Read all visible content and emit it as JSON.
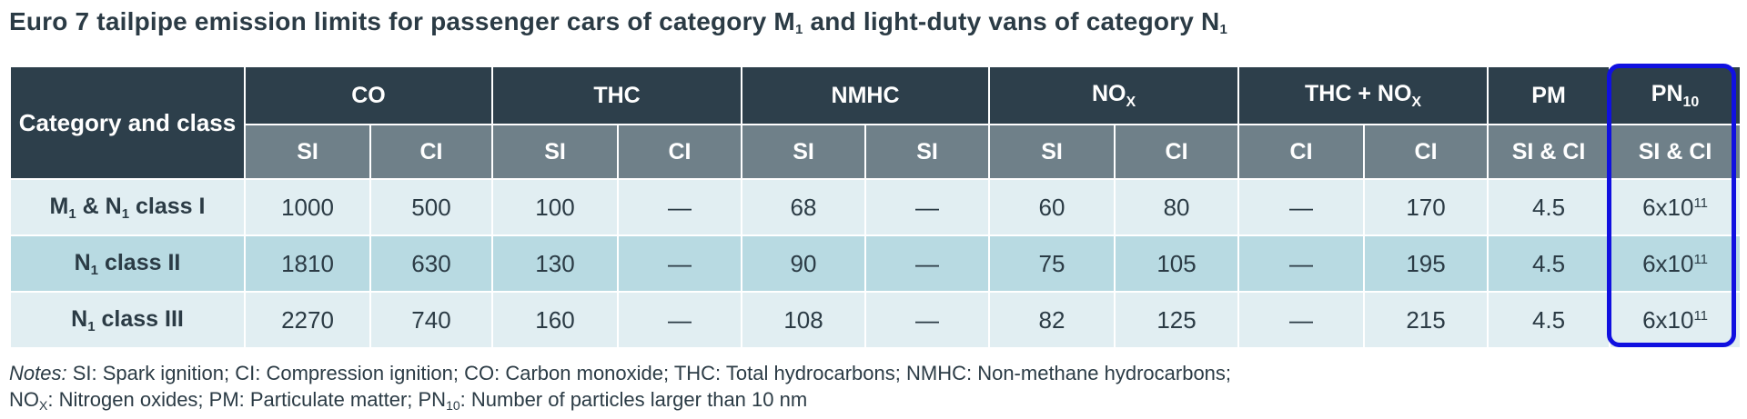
{
  "title": {
    "text_a": "Euro 7 tailpipe emission limits for passenger cars of category M",
    "sub_a": "1",
    "text_b": " and light-duty vans of category N",
    "sub_b": "1"
  },
  "table": {
    "category_header": "Category and class",
    "groups": {
      "co": "CO",
      "thc": "THC",
      "nmhc": "NMHC",
      "nox_base": "NO",
      "nox_sub": "X",
      "thcnox_base": "THC + NO",
      "thcnox_sub": "X",
      "pm": "PM",
      "pn_base": "PN",
      "pn_sub": "10"
    },
    "subheaders": [
      "SI",
      "CI",
      "SI",
      "CI",
      "SI",
      "SI",
      "SI",
      "CI",
      "CI",
      "CI",
      "SI & CI",
      "SI & CI"
    ],
    "rows": [
      {
        "label": {
          "a": "M",
          "a_sub": "1",
          "b": " & N",
          "b_sub": "1",
          "c": " class I"
        },
        "values": [
          "1000",
          "500",
          "100",
          "—",
          "68",
          "—",
          "60",
          "80",
          "—",
          "170",
          "4.5"
        ],
        "pn": {
          "base": "6x10",
          "exp": "11"
        }
      },
      {
        "label": {
          "a": "N",
          "a_sub": "1",
          "b": " class II"
        },
        "values": [
          "1810",
          "630",
          "130",
          "—",
          "90",
          "—",
          "75",
          "105",
          "—",
          "195",
          "4.5"
        ],
        "pn": {
          "base": "6x10",
          "exp": "11"
        }
      },
      {
        "label": {
          "a": "N",
          "a_sub": "1",
          "b": " class III"
        },
        "values": [
          "2270",
          "740",
          "160",
          "—",
          "108",
          "—",
          "82",
          "125",
          "—",
          "215",
          "4.5"
        ],
        "pn": {
          "base": "6x10",
          "exp": "11"
        }
      }
    ]
  },
  "notes": {
    "label": "Notes:",
    "line1": " SI: Spark ignition; CI: Compression ignition; CO: Carbon monoxide; THC: Total hydrocarbons; NMHC: Non-methane hydrocarbons;",
    "line2_a": "NO",
    "line2_sub": "X",
    "line2_b": ": Nitrogen oxides; PM: Particulate matter; PN",
    "line2_sub2": "10",
    "line2_c": ": Number of particles larger than 10 nm"
  },
  "colors": {
    "header_dark": "#2d3f4b",
    "header_mid": "#6f8089",
    "row_light": "#e1eef2",
    "row_dark": "#b8dae2",
    "highlight_border": "#1010e0"
  }
}
